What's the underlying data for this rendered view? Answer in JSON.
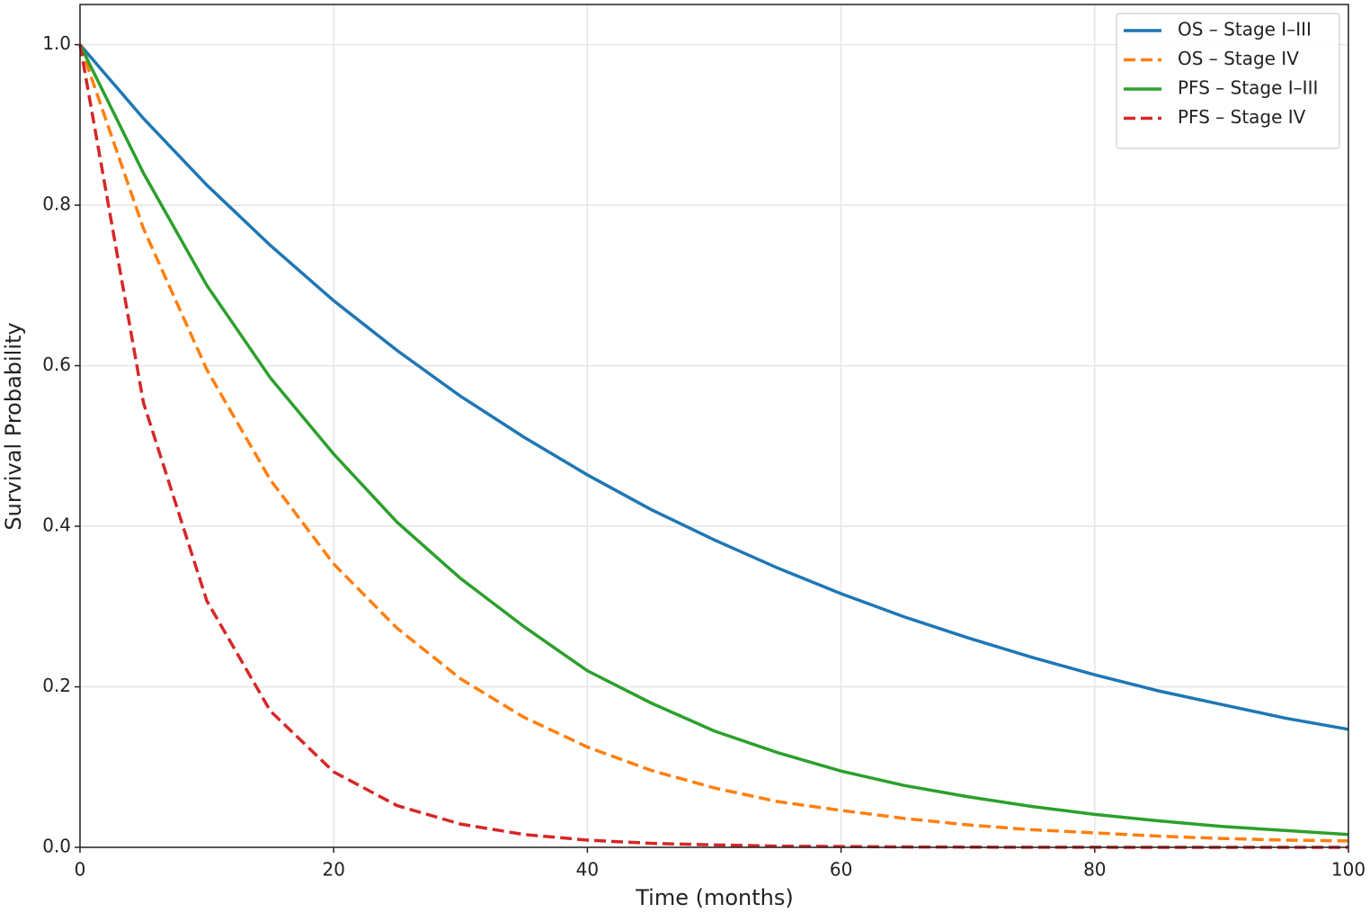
{
  "chart_data": {
    "type": "line",
    "xlabel": "Time (months)",
    "ylabel": "Survival Probability",
    "x": [
      0,
      5,
      10,
      15,
      20,
      25,
      30,
      35,
      40,
      45,
      50,
      55,
      60,
      65,
      70,
      75,
      80,
      85,
      90,
      95,
      100
    ],
    "series": [
      {
        "name": "OS – Stage I–III",
        "color": "#1f77b4",
        "linestyle": "solid",
        "values": [
          1,
          0.908,
          0.825,
          0.75,
          0.681,
          0.619,
          0.562,
          0.511,
          0.464,
          0.421,
          0.383,
          0.348,
          0.316,
          0.287,
          0.261,
          0.237,
          0.215,
          0.195,
          0.178,
          0.161,
          0.147
        ]
      },
      {
        "name": "OS – Stage IV",
        "color": "#ff7f0e",
        "linestyle": "dashed",
        "values": [
          1,
          0.771,
          0.595,
          0.458,
          0.353,
          0.273,
          0.21,
          0.162,
          0.125,
          0.096,
          0.074,
          0.057,
          0.046,
          0.036,
          0.028,
          0.022,
          0.018,
          0.014,
          0.011,
          0.009,
          0.008
        ]
      },
      {
        "name": "PFS – Stage I–III",
        "color": "#2ca02c",
        "linestyle": "solid",
        "values": [
          1,
          0.84,
          0.7,
          0.585,
          0.49,
          0.405,
          0.335,
          0.275,
          0.22,
          0.18,
          0.145,
          0.118,
          0.095,
          0.077,
          0.063,
          0.051,
          0.041,
          0.033,
          0.026,
          0.021,
          0.016
        ]
      },
      {
        "name": "PFS – Stage IV",
        "color": "#d62728",
        "linestyle": "dashed",
        "values": [
          1,
          0.554,
          0.307,
          0.17,
          0.094,
          0.052,
          0.029,
          0.016,
          0.009,
          0.005,
          0.003,
          0.0015,
          0.001,
          0.0005,
          0.0003,
          0.0001,
          0.0001,
          0,
          0,
          0,
          0
        ]
      }
    ],
    "xlim": [
      0,
      100
    ],
    "xticks": [
      0,
      20,
      40,
      60,
      80,
      100
    ],
    "ylim": [
      0,
      1.05
    ],
    "yticks": [
      {
        "value": 0,
        "label": "0.0"
      },
      0.2,
      0.4,
      0.6,
      0.8,
      {
        "value": 1,
        "label": "1.0"
      }
    ],
    "grid": true,
    "legend": "upper-right"
  }
}
